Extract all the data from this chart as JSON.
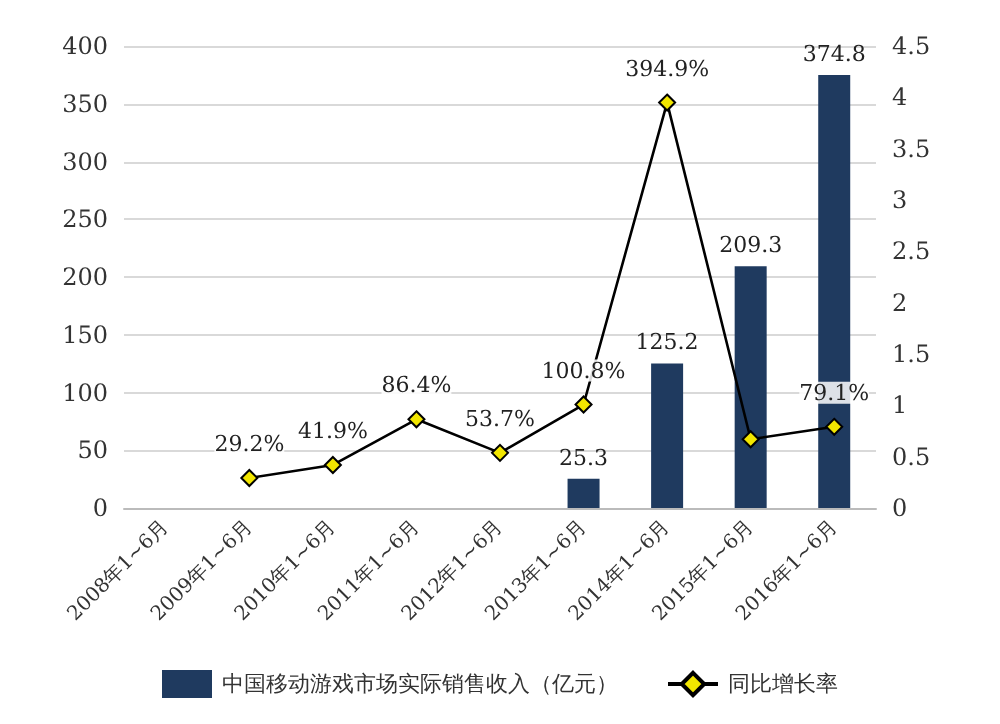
{
  "chart_data": {
    "type": "bar",
    "categories": [
      "2008年1~6月",
      "2009年1~6月",
      "2010年1~6月",
      "2011年1~6月",
      "2012年1~6月",
      "2013年1~6月",
      "2014年1~6月",
      "2015年1~6月",
      "2016年1~6月"
    ],
    "series": [
      {
        "name": "中国移动游戏市场实际销售收入（亿元）",
        "color": "#1f3a5f",
        "values": [
          null,
          null,
          null,
          null,
          null,
          25.3,
          125.2,
          209.3,
          374.8
        ],
        "value_labels": [
          null,
          null,
          null,
          null,
          null,
          "25.3",
          "125.2",
          "209.3",
          "374.8"
        ]
      },
      {
        "name": "同比增长率",
        "type": "line",
        "axis": "y2",
        "color": "#000000",
        "marker": "diamond",
        "values": [
          null,
          0.292,
          0.419,
          0.864,
          0.537,
          1.008,
          3.949,
          0.67,
          0.791
        ],
        "value_labels": [
          null,
          "29.2%",
          "41.9%",
          "86.4%",
          "53.7%",
          "100.8%",
          "394.9%",
          null,
          "79.1%"
        ]
      }
    ],
    "ylim": [
      0,
      400
    ],
    "yticks": [
      0,
      50,
      100,
      150,
      200,
      250,
      300,
      350,
      400
    ],
    "y2lim": [
      0,
      4.5
    ],
    "y2ticks": [
      0,
      0.5,
      1,
      1.5,
      2,
      2.5,
      3,
      3.5,
      4,
      4.5
    ],
    "grid": "y",
    "legend": "bottom"
  }
}
